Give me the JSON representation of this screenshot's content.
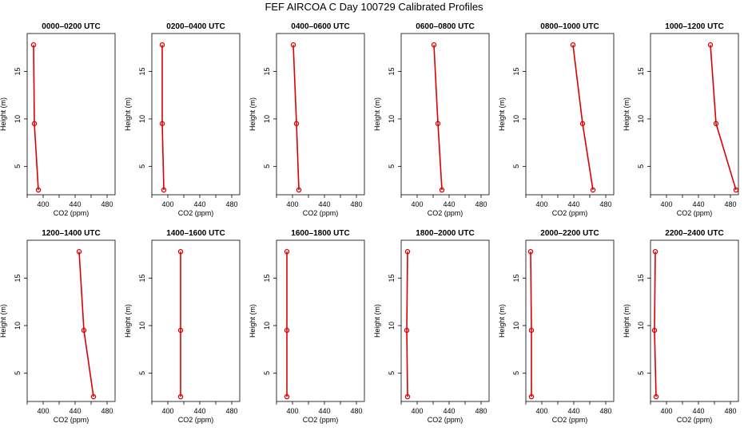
{
  "title": "FEF AIRCOA C  Day 100729  Calibrated Profiles",
  "colors": {
    "series": "#dd0000",
    "axis": "#000000",
    "background": "#ffffff"
  },
  "chart_data": [
    {
      "type": "line",
      "title": "0000–0200 UTC",
      "xlabel": "CO2 (ppm)",
      "ylabel": "Height (m)",
      "xlim": [
        380,
        490
      ],
      "ylim": [
        2,
        19
      ],
      "xticks": [
        400,
        440,
        480
      ],
      "yticks": [
        5,
        10,
        15
      ],
      "x": [
        388,
        389,
        394
      ],
      "y": [
        17.8,
        9.5,
        2.5
      ]
    },
    {
      "type": "line",
      "title": "0200–0400 UTC",
      "xlabel": "CO2 (ppm)",
      "ylabel": "Height (m)",
      "xlim": [
        380,
        490
      ],
      "ylim": [
        2,
        19
      ],
      "xticks": [
        400,
        440,
        480
      ],
      "yticks": [
        5,
        10,
        15
      ],
      "x": [
        393,
        393,
        395
      ],
      "y": [
        17.8,
        9.5,
        2.5
      ]
    },
    {
      "type": "line",
      "title": "0400–0600 UTC",
      "xlabel": "CO2 (ppm)",
      "ylabel": "Height (m)",
      "xlim": [
        380,
        490
      ],
      "ylim": [
        2,
        19
      ],
      "xticks": [
        400,
        440,
        480
      ],
      "yticks": [
        5,
        10,
        15
      ],
      "x": [
        401,
        405,
        408
      ],
      "y": [
        17.8,
        9.5,
        2.5
      ]
    },
    {
      "type": "line",
      "title": "0600–0800 UTC",
      "xlabel": "CO2 (ppm)",
      "ylabel": "Height (m)",
      "xlim": [
        380,
        490
      ],
      "ylim": [
        2,
        19
      ],
      "xticks": [
        400,
        440,
        480
      ],
      "yticks": [
        5,
        10,
        15
      ],
      "x": [
        421,
        426,
        431
      ],
      "y": [
        17.8,
        9.5,
        2.5
      ]
    },
    {
      "type": "line",
      "title": "0800–1000 UTC",
      "xlabel": "CO2 (ppm)",
      "ylabel": "Height (m)",
      "xlim": [
        380,
        490
      ],
      "ylim": [
        2,
        19
      ],
      "xticks": [
        400,
        440,
        480
      ],
      "yticks": [
        5,
        10,
        15
      ],
      "x": [
        439,
        451,
        464
      ],
      "y": [
        17.8,
        9.5,
        2.5
      ]
    },
    {
      "type": "line",
      "title": "1000–1200 UTC",
      "xlabel": "CO2 (ppm)",
      "ylabel": "Height (m)",
      "xlim": [
        380,
        490
      ],
      "ylim": [
        2,
        19
      ],
      "xticks": [
        400,
        440,
        480
      ],
      "yticks": [
        5,
        10,
        15
      ],
      "x": [
        455,
        462,
        487
      ],
      "y": [
        17.8,
        9.5,
        2.5
      ]
    },
    {
      "type": "line",
      "title": "1200–1400 UTC",
      "xlabel": "CO2 (ppm)",
      "ylabel": "Height (m)",
      "xlim": [
        380,
        490
      ],
      "ylim": [
        2,
        19
      ],
      "xticks": [
        400,
        440,
        480
      ],
      "yticks": [
        5,
        10,
        15
      ],
      "x": [
        445,
        451,
        463
      ],
      "y": [
        17.8,
        9.5,
        2.5
      ]
    },
    {
      "type": "line",
      "title": "1400–1600 UTC",
      "xlabel": "CO2 (ppm)",
      "ylabel": "Height (m)",
      "xlim": [
        380,
        490
      ],
      "ylim": [
        2,
        19
      ],
      "xticks": [
        400,
        440,
        480
      ],
      "yticks": [
        5,
        10,
        15
      ],
      "x": [
        416,
        416,
        416
      ],
      "y": [
        17.8,
        9.5,
        2.5
      ]
    },
    {
      "type": "line",
      "title": "1600–1800 UTC",
      "xlabel": "CO2 (ppm)",
      "ylabel": "Height (m)",
      "xlim": [
        380,
        490
      ],
      "ylim": [
        2,
        19
      ],
      "xticks": [
        400,
        440,
        480
      ],
      "yticks": [
        5,
        10,
        15
      ],
      "x": [
        393,
        393,
        393
      ],
      "y": [
        17.8,
        9.5,
        2.5
      ]
    },
    {
      "type": "line",
      "title": "1800–2000 UTC",
      "xlabel": "CO2 (ppm)",
      "ylabel": "Height (m)",
      "xlim": [
        380,
        490
      ],
      "ylim": [
        2,
        19
      ],
      "xticks": [
        400,
        440,
        480
      ],
      "yticks": [
        5,
        10,
        15
      ],
      "x": [
        388,
        387,
        388
      ],
      "y": [
        17.8,
        9.5,
        2.5
      ]
    },
    {
      "type": "line",
      "title": "2000–2200 UTC",
      "xlabel": "CO2 (ppm)",
      "ylabel": "Height (m)",
      "xlim": [
        380,
        490
      ],
      "ylim": [
        2,
        19
      ],
      "xticks": [
        400,
        440,
        480
      ],
      "yticks": [
        5,
        10,
        15
      ],
      "x": [
        386,
        387,
        387
      ],
      "y": [
        17.8,
        9.5,
        2.5
      ]
    },
    {
      "type": "line",
      "title": "2200–2400 UTC",
      "xlabel": "CO2 (ppm)",
      "ylabel": "Height (m)",
      "xlim": [
        380,
        490
      ],
      "ylim": [
        2,
        19
      ],
      "xticks": [
        400,
        440,
        480
      ],
      "yticks": [
        5,
        10,
        15
      ],
      "x": [
        386,
        385,
        387
      ],
      "y": [
        17.8,
        9.5,
        2.5
      ]
    }
  ]
}
